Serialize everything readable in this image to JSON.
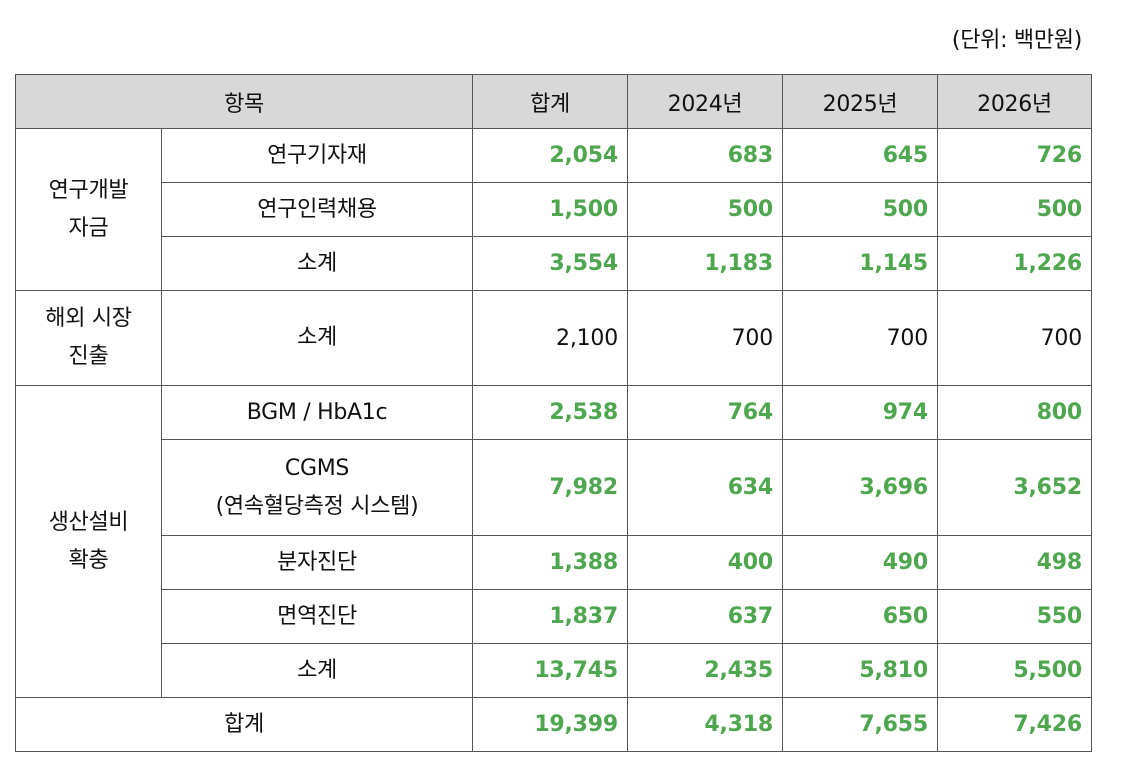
{
  "unit_note": "(단위: 백만원)",
  "colors": {
    "highlight_value": "#4ea64e",
    "header_bg": "#d8d8d8",
    "border": "#555555"
  },
  "header": {
    "item": "항목",
    "total": "합계",
    "y2024": "2024년",
    "y2025": "2025년",
    "y2026": "2026년"
  },
  "sections": [
    {
      "category_lines": [
        "연구개발",
        "자금"
      ],
      "rows": [
        {
          "item_lines": [
            "연구기자재"
          ],
          "total": "2,054",
          "y2024": "683",
          "y2025": "645",
          "y2026": "726"
        },
        {
          "item_lines": [
            "연구인력채용"
          ],
          "total": "1,500",
          "y2024": "500",
          "y2025": "500",
          "y2026": "500"
        },
        {
          "item_lines": [
            "소계"
          ],
          "total": "3,554",
          "y2024": "1,183",
          "y2025": "1,145",
          "y2026": "1,226"
        }
      ]
    },
    {
      "category_lines": [
        "해외 시장",
        "진출"
      ],
      "rows": [
        {
          "item_lines": [
            "소계"
          ],
          "total": "2,100",
          "y2024": "700",
          "y2025": "700",
          "y2026": "700"
        }
      ]
    },
    {
      "category_lines": [
        "생산설비",
        "확충"
      ],
      "rows": [
        {
          "item_lines": [
            "BGM / HbA1c"
          ],
          "total": "2,538",
          "y2024": "764",
          "y2025": "974",
          "y2026": "800"
        },
        {
          "item_lines": [
            "CGMS",
            "(연속혈당측정 시스템)"
          ],
          "total": "7,982",
          "y2024": "634",
          "y2025": "3,696",
          "y2026": "3,652"
        },
        {
          "item_lines": [
            "분자진단"
          ],
          "total": "1,388",
          "y2024": "400",
          "y2025": "490",
          "y2026": "498"
        },
        {
          "item_lines": [
            "면역진단"
          ],
          "total": "1,837",
          "y2024": "637",
          "y2025": "650",
          "y2026": "550"
        },
        {
          "item_lines": [
            "소계"
          ],
          "total": "13,745",
          "y2024": "2,435",
          "y2025": "5,810",
          "y2026": "5,500"
        }
      ]
    }
  ],
  "grand_total": {
    "label": "합계",
    "total": "19,399",
    "y2024": "4,318",
    "y2025": "7,655",
    "y2026": "7,426"
  }
}
